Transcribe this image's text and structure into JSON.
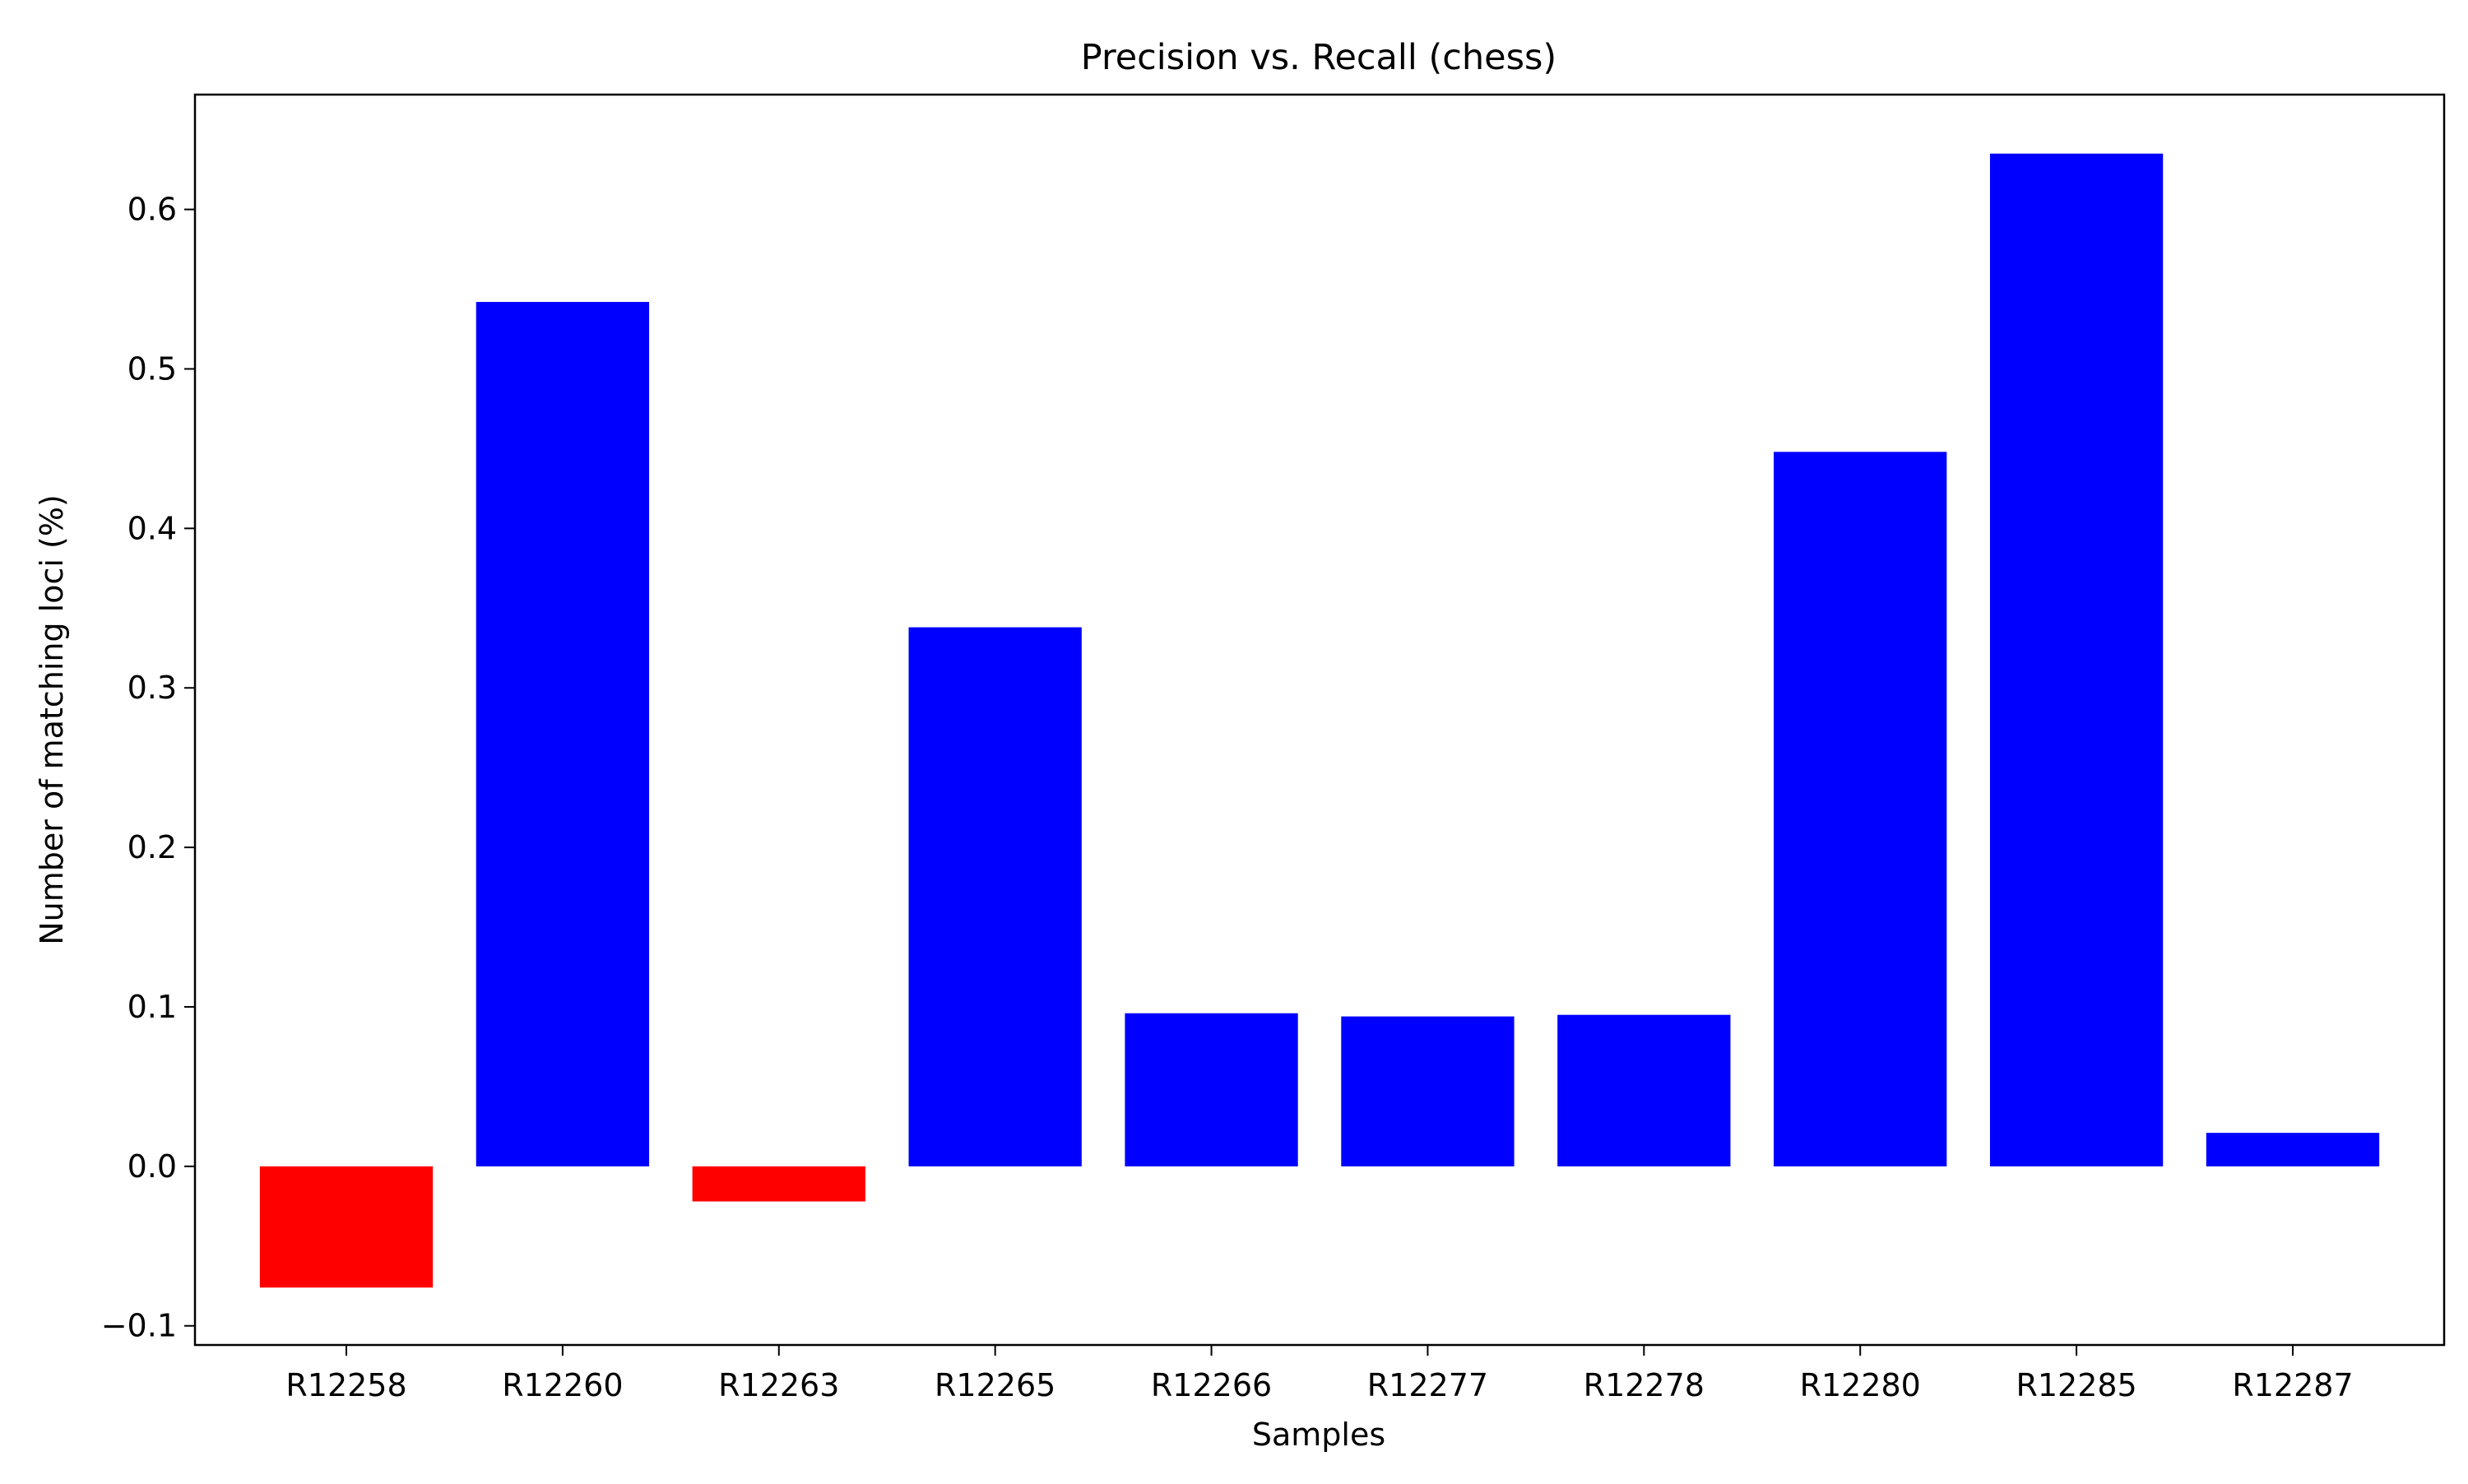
{
  "chart_data": {
    "type": "bar",
    "title": "Precision vs. Recall (chess)",
    "xlabel": "Samples",
    "ylabel": "Number of matching loci (%)",
    "categories": [
      "R12258",
      "R12260",
      "R12263",
      "R12265",
      "R12266",
      "R12277",
      "R12278",
      "R12280",
      "R12285",
      "R12287"
    ],
    "values": [
      -0.076,
      0.542,
      -0.022,
      0.338,
      0.096,
      0.094,
      0.095,
      0.448,
      0.635,
      0.021
    ],
    "ylim": [
      -0.112,
      0.672
    ],
    "yticks": [
      -0.1,
      0.0,
      0.1,
      0.2,
      0.3,
      0.4,
      0.5,
      0.6
    ],
    "ytick_labels": [
      "−0.1",
      "0.0",
      "0.1",
      "0.2",
      "0.3",
      "0.4",
      "0.5",
      "0.6"
    ],
    "grid": false,
    "legend": "none",
    "colors": {
      "positive": "#0000ff",
      "negative": "#ff0000"
    }
  }
}
